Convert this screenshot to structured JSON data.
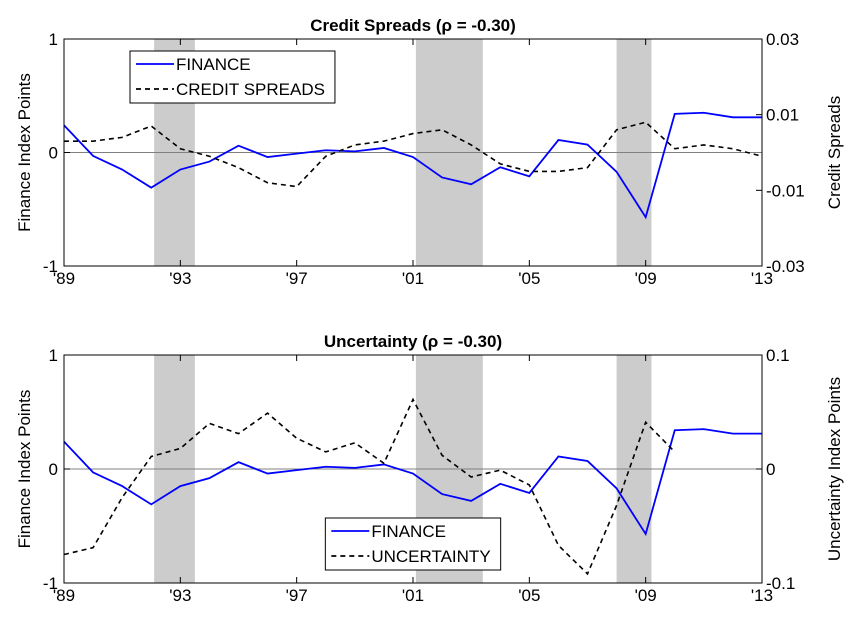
{
  "chart_data": [
    {
      "type": "line",
      "title": "Credit Spreads (ρ = -0.30)",
      "y_label": "Finance Index Points",
      "y2_label": "Credit Spreads",
      "x": [
        1989,
        1990,
        1991,
        1992,
        1993,
        1994,
        1995,
        1996,
        1997,
        1998,
        1999,
        2000,
        2001,
        2002,
        2003,
        2004,
        2005,
        2006,
        2007,
        2008,
        2009,
        2010,
        2011,
        2012,
        2013
      ],
      "xlim": [
        1989,
        2013
      ],
      "xticks": [
        {
          "value": 1989,
          "label": "'89"
        },
        {
          "value": 1993,
          "label": "'93"
        },
        {
          "value": 1997,
          "label": "'97"
        },
        {
          "value": 2001,
          "label": "'01"
        },
        {
          "value": 2005,
          "label": "'05"
        },
        {
          "value": 2009,
          "label": "'09"
        },
        {
          "value": 2013,
          "label": "'13"
        }
      ],
      "ylim": [
        -1,
        1
      ],
      "yticks": [
        -1,
        0,
        1
      ],
      "y2lim": [
        -0.03,
        0.03
      ],
      "y2ticks": [
        -0.03,
        -0.01,
        0.01,
        0.03
      ],
      "shaded_regions": [
        [
          1992.1,
          1993.5
        ],
        [
          2001.1,
          2003.4
        ],
        [
          2008.0,
          2009.2
        ]
      ],
      "legend": "upper left",
      "series": [
        {
          "name": "FINANCE",
          "color": "#0000ff",
          "style": "solid",
          "values": [
            0.24,
            -0.03,
            -0.15,
            -0.31,
            -0.15,
            -0.08,
            0.06,
            -0.04,
            -0.01,
            0.02,
            0.01,
            0.04,
            -0.04,
            -0.22,
            -0.28,
            -0.13,
            -0.21,
            0.11,
            0.07,
            -0.17,
            -0.57,
            0.34,
            0.35,
            0.31,
            0.31
          ]
        },
        {
          "name": "CREDIT SPREADS",
          "color": "#000000",
          "style": "dashed",
          "axis": "y2",
          "values": [
            0.003,
            0.003,
            0.004,
            0.007,
            0.001,
            -0.001,
            -0.004,
            -0.008,
            -0.009,
            -0.001,
            0.002,
            0.003,
            0.005,
            0.006,
            0.002,
            -0.003,
            -0.005,
            -0.005,
            -0.004,
            0.006,
            0.008,
            0.001,
            0.002,
            0.001,
            -0.001
          ]
        }
      ]
    },
    {
      "type": "line",
      "title": "Uncertainty (ρ = -0.30)",
      "y_label": "Finance Index Points",
      "y2_label": "Uncertainty Index Points",
      "x": [
        1989,
        1990,
        1991,
        1992,
        1993,
        1994,
        1995,
        1996,
        1997,
        1998,
        1999,
        2000,
        2001,
        2002,
        2003,
        2004,
        2005,
        2006,
        2007,
        2008,
        2009,
        2010,
        2011,
        2012,
        2013
      ],
      "xlim": [
        1989,
        2013
      ],
      "xticks": [
        {
          "value": 1989,
          "label": "'89"
        },
        {
          "value": 1993,
          "label": "'93"
        },
        {
          "value": 1997,
          "label": "'97"
        },
        {
          "value": 2001,
          "label": "'01"
        },
        {
          "value": 2005,
          "label": "'05"
        },
        {
          "value": 2009,
          "label": "'09"
        },
        {
          "value": 2013,
          "label": "'13"
        }
      ],
      "ylim": [
        -1,
        1
      ],
      "yticks": [
        -1,
        0,
        1
      ],
      "y2lim": [
        -0.1,
        0.1
      ],
      "y2ticks": [
        -0.1,
        0,
        0.1
      ],
      "shaded_regions": [
        [
          1992.1,
          1993.5
        ],
        [
          2001.1,
          2003.4
        ],
        [
          2008.0,
          2009.2
        ]
      ],
      "legend": "lower center",
      "series": [
        {
          "name": "FINANCE",
          "color": "#0000ff",
          "style": "solid",
          "values": [
            0.24,
            -0.03,
            -0.15,
            -0.31,
            -0.15,
            -0.08,
            0.06,
            -0.04,
            -0.01,
            0.02,
            0.01,
            0.04,
            -0.04,
            -0.22,
            -0.28,
            -0.13,
            -0.21,
            0.11,
            0.07,
            -0.17,
            -0.57,
            0.34,
            0.35,
            0.31,
            0.31
          ]
        },
        {
          "name": "UNCERTAINTY",
          "color": "#000000",
          "style": "dashed",
          "axis": "y2",
          "values": [
            -0.075,
            -0.069,
            -0.025,
            0.011,
            0.018,
            0.04,
            0.031,
            0.049,
            0.027,
            0.015,
            0.023,
            0.005,
            0.061,
            0.012,
            -0.007,
            -0.001,
            -0.014,
            -0.067,
            -0.092,
            -0.032,
            0.041,
            0.015,
            null,
            null,
            null
          ]
        }
      ]
    }
  ]
}
